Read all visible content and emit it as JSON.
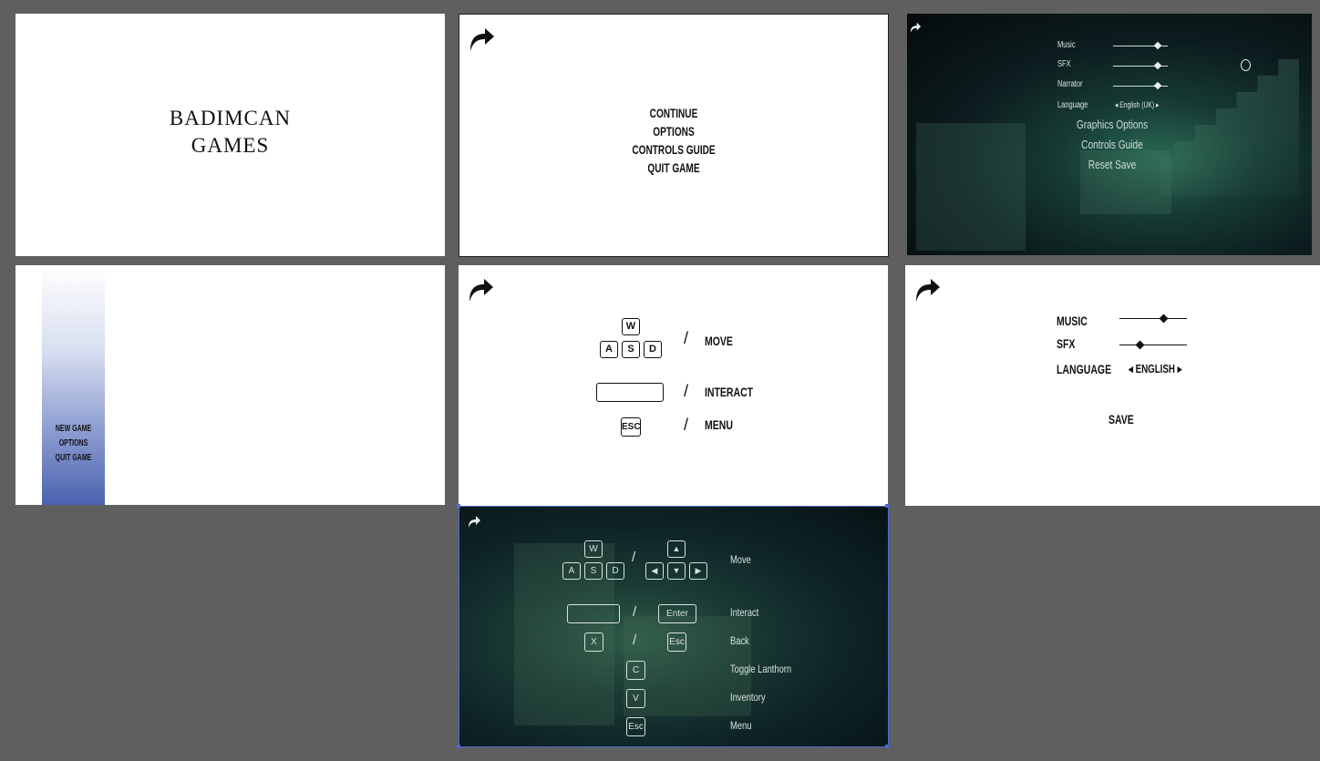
{
  "frames": {
    "splash": {
      "title_line1": "BADIMCAN",
      "title_line2": "GAMES"
    },
    "pause_menu": {
      "items": [
        "CONTINUE",
        "OPTIONS",
        "CONTROLS GUIDE",
        "QUIT GAME"
      ]
    },
    "settings_dark": {
      "music_label": "Music",
      "sfx_label": "SFX",
      "narrator_label": "Narrator",
      "language_label": "Language",
      "language_value": "◂ English (UK) ▸",
      "graphics_options": "Graphics Options",
      "controls_guide": "Controls Guide",
      "reset_save": "Reset Save",
      "music_level": 0.8,
      "sfx_level": 0.8,
      "narrator_level": 0.8
    },
    "main_menu": {
      "items": [
        "NEW GAME",
        "OPTIONS",
        "QUIT GAME"
      ]
    },
    "controls_light": {
      "keys": {
        "w": "W",
        "a": "A",
        "s": "S",
        "d": "D",
        "esc": "ESC"
      },
      "slash": "/",
      "move": "MOVE",
      "interact": "INTERACT",
      "menu": "MENU"
    },
    "settings_light": {
      "music_label": "MUSIC",
      "sfx_label": "SFX",
      "language_label": "LANGUAGE",
      "language_value": "◂ ENGLISH ▸",
      "save_label": "SAVE",
      "music_level": 0.65,
      "sfx_level": 0.3
    },
    "controls_dark": {
      "keys": {
        "w": "W",
        "a": "A",
        "s": "S",
        "d": "D",
        "up": "▲",
        "left": "◀",
        "down": "▼",
        "right": "▶",
        "enter": "Enter",
        "x": "X",
        "esc_back": "Esc",
        "c": "C",
        "v": "V",
        "esc_menu": "Esc"
      },
      "slash": "/",
      "move": "Move",
      "interact": "Interact",
      "back": "Back",
      "toggle_lanthorn": "Toggle Lanthorn",
      "inventory": "Inventory",
      "menu": "Menu"
    }
  },
  "colors": {
    "canvas": "#5f5f5f",
    "selection": "#4a6ad6",
    "panel_gradient_end": "#4b63b0"
  },
  "icons": {
    "back": "curved-arrow-icon",
    "lantern": "lantern-icon"
  }
}
